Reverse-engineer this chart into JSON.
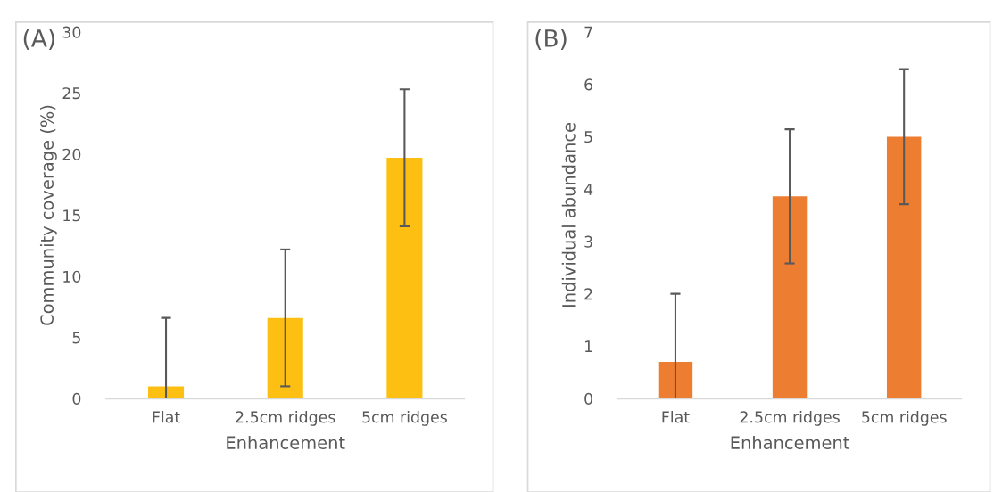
{
  "chart_data": [
    {
      "type": "bar",
      "title": "(A)",
      "xlabel": "Enhancement",
      "ylabel": "Community coverage (%)",
      "categories": [
        "Flat",
        "2.5cm ridges",
        "5cm ridges"
      ],
      "series": [
        {
          "color": "#fcbf12",
          "values": [
            1.0,
            6.6,
            19.7
          ],
          "errors": [
            [
              0,
              6.6
            ],
            5.6,
            5.6
          ]
        }
      ],
      "ylim": [
        0,
        30
      ],
      "yticks": [
        0,
        5,
        10,
        15,
        20,
        25,
        30
      ],
      "grid": false,
      "legend": false
    },
    {
      "type": "bar",
      "title": "(B)",
      "xlabel": "Enhancement",
      "ylabel": "Individual abundance",
      "categories": [
        "Flat",
        "2.5cm ridges",
        "5cm ridges"
      ],
      "series": [
        {
          "color": "#ed7d31",
          "values": [
            0.7,
            3.86,
            5.0
          ],
          "errors": [
            [
              0,
              2.0
            ],
            1.28,
            1.29
          ]
        }
      ],
      "ylim": [
        0,
        7
      ],
      "yticks": [
        0,
        1,
        2,
        3,
        4,
        5,
        6,
        7
      ],
      "grid": false,
      "legend": false
    }
  ]
}
